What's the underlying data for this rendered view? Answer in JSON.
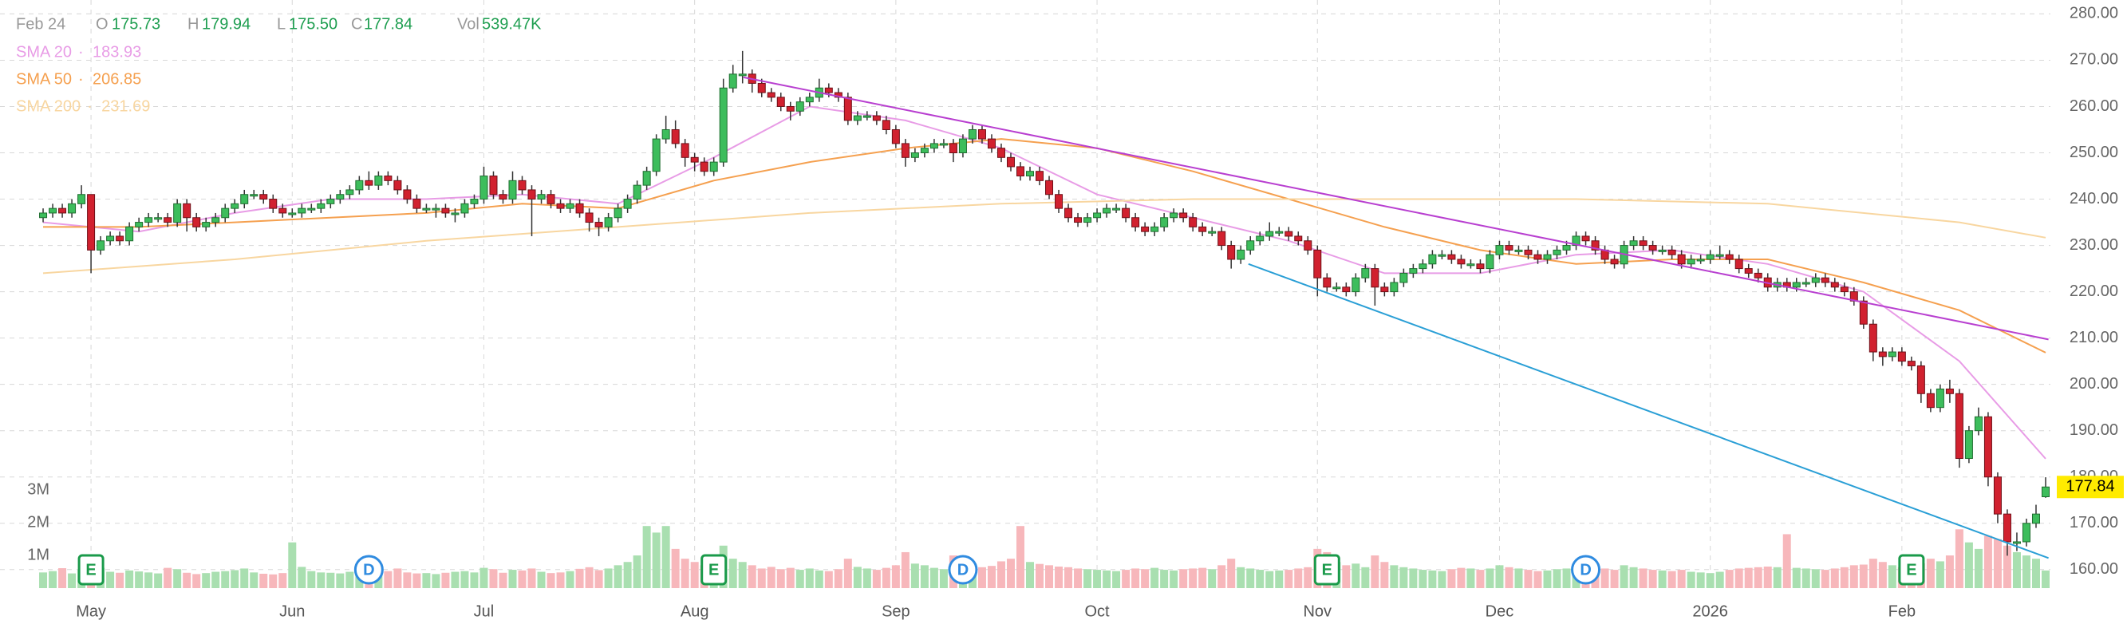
{
  "header": {
    "date": "Feb 24",
    "o": "O",
    "open": "175.73",
    "h": "H",
    "high": "179.94",
    "l": "L",
    "low": "175.50",
    "c": "C",
    "close": "177.84",
    "vol": "Vol",
    "volume": "539.47K"
  },
  "chart_data": {
    "type": "candlestick",
    "xlim": [
      -4.5,
      209.5
    ],
    "xticks": [
      {
        "value": 5,
        "label": "May"
      },
      {
        "value": 26,
        "label": "Jun"
      },
      {
        "value": 46,
        "label": "Jul"
      },
      {
        "value": 68,
        "label": "Aug"
      },
      {
        "value": 89,
        "label": "Sep"
      },
      {
        "value": 110,
        "label": "Oct"
      },
      {
        "value": 133,
        "label": "Nov"
      },
      {
        "value": 152,
        "label": "Dec"
      },
      {
        "value": 174,
        "label": "2026"
      },
      {
        "value": 194,
        "label": "Feb"
      }
    ],
    "ylim": [
      156,
      283
    ],
    "yticks": [
      {
        "value": 160,
        "label": "160.00"
      },
      {
        "value": 170,
        "label": "170.00"
      },
      {
        "value": 180,
        "label": "180.00"
      },
      {
        "value": 190,
        "label": "190.00"
      },
      {
        "value": 200,
        "label": "200.00"
      },
      {
        "value": 210,
        "label": "210.00"
      },
      {
        "value": 220,
        "label": "220.00"
      },
      {
        "value": 230,
        "label": "230.00"
      },
      {
        "value": 240,
        "label": "240.00"
      },
      {
        "value": 250,
        "label": "250.00"
      },
      {
        "value": 260,
        "label": "260.00"
      },
      {
        "value": 270,
        "label": "270.00"
      },
      {
        "value": 280,
        "label": "280.00"
      }
    ],
    "y2lim": [
      0,
      18000000
    ],
    "y2ticks": [
      {
        "value": 1000000,
        "label": "1M"
      },
      {
        "value": 2000000,
        "label": "2M"
      },
      {
        "value": 3000000,
        "label": "3M"
      }
    ],
    "grid": true,
    "up_color": "#3dbd5c",
    "down_color": "#d1212f",
    "up_volume_color": "#a9dfb0",
    "down_volume_color": "#f7b7bb",
    "open": [
      236,
      237,
      238,
      237,
      239,
      241,
      229,
      231,
      232,
      231,
      234,
      235,
      236,
      236,
      235,
      239,
      236,
      234,
      235,
      236,
      238,
      239,
      241,
      241,
      240,
      238,
      237,
      237,
      238,
      238,
      239,
      240,
      241,
      242,
      244,
      243,
      245,
      244,
      242,
      240,
      238,
      238,
      238,
      237,
      237,
      239,
      240,
      245,
      241,
      240,
      244,
      242,
      240,
      241,
      239,
      238,
      239,
      237,
      235,
      234,
      236,
      238,
      240,
      243,
      246,
      253,
      255,
      252,
      249,
      248,
      246,
      248,
      264,
      267,
      267,
      265,
      263,
      262,
      260,
      259,
      261,
      262,
      264,
      263,
      262,
      257,
      258,
      258,
      257,
      255,
      252,
      249,
      250,
      251,
      252,
      252,
      250,
      253,
      255,
      253,
      251,
      249,
      247,
      245,
      246,
      244,
      241,
      238,
      236,
      235,
      236,
      237,
      238,
      238,
      236,
      234,
      233,
      234,
      236,
      237,
      236,
      234,
      233,
      233,
      230,
      227,
      229,
      231,
      232,
      233,
      233,
      232,
      231,
      229,
      223,
      221,
      221,
      220,
      223,
      225,
      221,
      220,
      222,
      224,
      225,
      226,
      228,
      228,
      227,
      226,
      226,
      225,
      228,
      230,
      229,
      229,
      228,
      227,
      228,
      229,
      230,
      232,
      231,
      229,
      227,
      226,
      230,
      231,
      230,
      229,
      229,
      228,
      226,
      227,
      227,
      228,
      228,
      227,
      225,
      224,
      223,
      221,
      222,
      221,
      222,
      222,
      223,
      222,
      221,
      220,
      218,
      213,
      207,
      206,
      207,
      205,
      204,
      198,
      195,
      199,
      198,
      184,
      190,
      193,
      180,
      172,
      166,
      166,
      170,
      175.73
    ],
    "high": [
      238,
      239,
      239,
      240,
      243,
      241,
      232,
      233,
      233,
      235,
      236,
      237,
      237,
      237,
      240,
      240,
      237,
      236,
      237,
      239,
      240,
      242,
      242,
      242,
      241,
      239,
      238,
      239,
      239,
      240,
      241,
      242,
      243,
      245,
      246,
      246,
      246,
      245,
      243,
      241,
      239,
      239,
      239,
      238,
      240,
      241,
      247,
      246,
      242,
      246,
      245,
      243,
      242,
      242,
      240,
      240,
      240,
      238,
      236,
      237,
      239,
      241,
      244,
      247,
      254,
      258,
      257,
      253,
      250,
      249,
      249,
      266,
      269,
      272,
      268,
      266,
      264,
      263,
      261,
      262,
      263,
      266,
      265,
      264,
      263,
      259,
      259,
      259,
      258,
      256,
      253,
      251,
      252,
      253,
      253,
      253,
      254,
      256,
      256,
      254,
      252,
      250,
      248,
      247,
      247,
      245,
      242,
      239,
      237,
      237,
      238,
      239,
      239,
      239,
      237,
      235,
      235,
      237,
      238,
      238,
      237,
      235,
      234,
      234,
      231,
      230,
      232,
      233,
      235,
      234,
      234,
      233,
      232,
      230,
      224,
      222,
      222,
      224,
      226,
      226,
      222,
      223,
      225,
      226,
      227,
      229,
      229,
      229,
      228,
      227,
      227,
      229,
      231,
      231,
      230,
      230,
      229,
      229,
      230,
      231,
      233,
      233,
      232,
      230,
      228,
      231,
      232,
      232,
      231,
      230,
      230,
      229,
      228,
      228,
      229,
      230,
      229,
      228,
      226,
      225,
      224,
      223,
      223,
      223,
      223,
      224,
      224,
      223,
      222,
      221,
      219,
      214,
      208,
      208,
      208,
      206,
      205,
      199,
      200,
      201,
      199,
      191,
      195,
      194,
      181,
      173,
      168,
      171,
      174,
      179.94
    ],
    "low": [
      235,
      236,
      236,
      236,
      238,
      224,
      228,
      230,
      230,
      230,
      233,
      234,
      235,
      234,
      234,
      233,
      233,
      233,
      234,
      235,
      237,
      238,
      240,
      239,
      237,
      236,
      236,
      236,
      237,
      237,
      238,
      239,
      240,
      241,
      242,
      242,
      243,
      241,
      239,
      237,
      237,
      236,
      236,
      235,
      236,
      238,
      239,
      240,
      239,
      239,
      241,
      232,
      239,
      238,
      237,
      237,
      236,
      233,
      232,
      233,
      235,
      237,
      239,
      242,
      245,
      252,
      251,
      247,
      246,
      245,
      245,
      247,
      263,
      265,
      263,
      262,
      261,
      259,
      257,
      258,
      260,
      261,
      262,
      261,
      256,
      256,
      257,
      256,
      254,
      251,
      247,
      248,
      249,
      250,
      251,
      248,
      249,
      252,
      252,
      250,
      248,
      246,
      244,
      244,
      243,
      240,
      237,
      235,
      234,
      234,
      235,
      236,
      237,
      235,
      233,
      232,
      232,
      233,
      235,
      235,
      233,
      232,
      232,
      229,
      225,
      226,
      228,
      230,
      231,
      232,
      231,
      230,
      228,
      219,
      220,
      220,
      219,
      219,
      222,
      217,
      219,
      219,
      221,
      223,
      224,
      225,
      227,
      226,
      225,
      225,
      224,
      224,
      227,
      228,
      228,
      227,
      226,
      226,
      227,
      228,
      229,
      230,
      228,
      226,
      225,
      225,
      229,
      229,
      228,
      228,
      227,
      225,
      225,
      226,
      226,
      227,
      226,
      224,
      223,
      222,
      220,
      220,
      220,
      220,
      221,
      221,
      221,
      220,
      219,
      217,
      212,
      205,
      204,
      205,
      204,
      203,
      196,
      194,
      194,
      196,
      182,
      183,
      189,
      178,
      170,
      163,
      164,
      165,
      169,
      175.5
    ],
    "close": [
      237,
      238,
      237,
      239,
      241,
      229,
      231,
      232,
      231,
      234,
      235,
      236,
      236,
      235,
      239,
      236,
      234,
      235,
      236,
      238,
      239,
      241,
      241,
      240,
      238,
      237,
      237,
      238,
      238,
      239,
      240,
      241,
      242,
      244,
      243,
      245,
      244,
      242,
      240,
      238,
      238,
      238,
      237,
      237,
      239,
      240,
      245,
      241,
      240,
      244,
      242,
      240,
      241,
      239,
      238,
      239,
      237,
      235,
      234,
      236,
      238,
      240,
      243,
      246,
      253,
      255,
      252,
      249,
      248,
      246,
      248,
      264,
      267,
      267,
      265,
      263,
      262,
      260,
      259,
      261,
      262,
      264,
      263,
      262,
      257,
      258,
      258,
      257,
      255,
      252,
      249,
      250,
      251,
      252,
      252,
      250,
      253,
      255,
      253,
      251,
      249,
      247,
      245,
      246,
      244,
      241,
      238,
      236,
      235,
      236,
      237,
      238,
      238,
      236,
      234,
      233,
      234,
      236,
      237,
      236,
      234,
      233,
      233,
      230,
      227,
      229,
      231,
      232,
      233,
      233,
      232,
      231,
      229,
      223,
      221,
      221,
      220,
      223,
      225,
      221,
      220,
      222,
      224,
      225,
      226,
      228,
      228,
      227,
      226,
      226,
      225,
      228,
      230,
      229,
      229,
      228,
      227,
      228,
      229,
      230,
      232,
      231,
      229,
      227,
      226,
      230,
      231,
      230,
      229,
      229,
      228,
      226,
      227,
      227,
      228,
      228,
      227,
      225,
      224,
      223,
      221,
      222,
      221,
      222,
      222,
      223,
      222,
      221,
      220,
      218,
      213,
      207,
      206,
      207,
      205,
      204,
      198,
      195,
      199,
      198,
      184,
      190,
      193,
      180,
      172,
      166,
      166,
      170,
      172,
      177.84
    ],
    "volume": [
      480000,
      520000,
      610000,
      450000,
      560000,
      900000,
      620000,
      500000,
      470000,
      540000,
      510000,
      480000,
      450000,
      620000,
      580000,
      470000,
      430000,
      460000,
      500000,
      520000,
      550000,
      600000,
      480000,
      440000,
      420000,
      460000,
      1400000,
      650000,
      520000,
      480000,
      470000,
      450000,
      500000,
      430000,
      410000,
      440000,
      520000,
      600000,
      480000,
      450000,
      460000,
      430000,
      470000,
      500000,
      520000,
      480000,
      620000,
      580000,
      470000,
      560000,
      540000,
      600000,
      500000,
      460000,
      480000,
      520000,
      590000,
      640000,
      550000,
      600000,
      700000,
      800000,
      1000000,
      1900000,
      1700000,
      1900000,
      1200000,
      900000,
      800000,
      700000,
      650000,
      1300000,
      900000,
      800000,
      700000,
      600000,
      650000,
      580000,
      620000,
      560000,
      600000,
      540000,
      520000,
      580000,
      900000,
      650000,
      600000,
      560000,
      620000,
      700000,
      1100000,
      750000,
      700000,
      620000,
      580000,
      1000000,
      900000,
      760000,
      640000,
      680000,
      820000,
      900000,
      1900000,
      800000,
      740000,
      700000,
      660000,
      640000,
      600000,
      580000,
      560000,
      540000,
      520000,
      560000,
      600000,
      580000,
      620000,
      560000,
      540000,
      580000,
      600000,
      620000,
      580000,
      700000,
      900000,
      640000,
      600000,
      560000,
      520000,
      540000,
      560000,
      600000,
      640000,
      1200000,
      1100000,
      800000,
      700000,
      750000,
      640000,
      1000000,
      800000,
      700000,
      640000,
      600000,
      560000,
      540000,
      520000,
      580000,
      620000,
      600000,
      560000,
      600000,
      700000,
      640000,
      600000,
      560000,
      520000,
      540000,
      580000,
      600000,
      640000,
      680000,
      620000,
      600000,
      560000,
      700000,
      640000,
      600000,
      560000,
      540000,
      520000,
      560000,
      500000,
      480000,
      460000,
      500000,
      560000,
      600000,
      620000,
      640000,
      660000,
      640000,
      1650000,
      620000,
      600000,
      580000,
      560000,
      600000,
      640000,
      700000,
      720000,
      900000,
      800000,
      700000,
      640000,
      680000,
      760000,
      900000,
      820000,
      1000000,
      1800000,
      1400000,
      1200000,
      1600000,
      1500000,
      1300000,
      1100000,
      1000000,
      900000,
      539470
    ],
    "sma": [
      {
        "name": "SMA 20",
        "color": "#e89ce6",
        "x": [
          0,
          10,
          20,
          30,
          40,
          50,
          60,
          70,
          80,
          90,
          100,
          110,
          120,
          130,
          140,
          150,
          160,
          170,
          180,
          190,
          200,
          209
        ],
        "values": [
          235,
          233,
          237,
          240,
          240,
          241,
          239,
          249,
          260,
          257,
          251,
          241,
          236,
          231,
          224,
          224,
          228,
          229,
          226,
          220,
          205,
          183.93
        ]
      },
      {
        "name": "SMA 50",
        "color": "#f5a04f",
        "x": [
          0,
          10,
          20,
          30,
          40,
          50,
          60,
          70,
          80,
          90,
          100,
          110,
          120,
          130,
          140,
          150,
          160,
          170,
          180,
          190,
          200,
          209
        ],
        "values": [
          234,
          234,
          235,
          236,
          237,
          239,
          238,
          244,
          248,
          251,
          253,
          251,
          246,
          240,
          234,
          229,
          226,
          227,
          227,
          222,
          216,
          206.85
        ]
      },
      {
        "name": "SMA 200",
        "color": "#f8d6a0",
        "x": [
          0,
          20,
          40,
          60,
          80,
          100,
          120,
          140,
          160,
          180,
          200,
          209
        ],
        "values": [
          224,
          227,
          231,
          234,
          237,
          239,
          240,
          240,
          240,
          239,
          235,
          231.69
        ]
      }
    ],
    "trendlines": [
      {
        "color": "#b83fd0",
        "x": [
          73.1,
          209.3
        ],
        "values": [
          266.3,
          209.7
        ]
      },
      {
        "color": "#2a9fd6",
        "x": [
          125.8,
          209.3
        ],
        "values": [
          226,
          162.5
        ]
      }
    ],
    "events": [
      {
        "x": 5,
        "label": "E"
      },
      {
        "x": 70,
        "label": "E"
      },
      {
        "x": 134,
        "label": "E"
      },
      {
        "x": 195,
        "label": "E"
      },
      {
        "x": 34,
        "label": "D"
      },
      {
        "x": 96,
        "label": "D"
      },
      {
        "x": 161,
        "label": "D"
      }
    ]
  }
}
